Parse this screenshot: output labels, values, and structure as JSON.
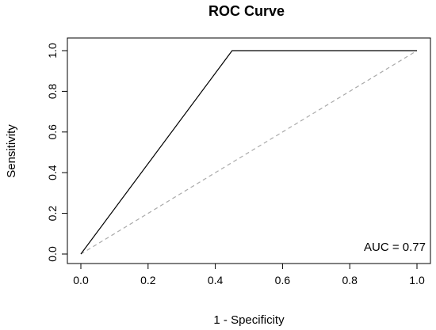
{
  "chart_data": {
    "type": "line",
    "title": "ROC Curve",
    "xlabel": "1 - Specificity",
    "ylabel": "Sensitivity",
    "xlim": [
      0,
      1
    ],
    "ylim": [
      0,
      1
    ],
    "x_ticks": [
      0.0,
      0.2,
      0.4,
      0.6,
      0.8,
      1.0
    ],
    "x_tick_labels": [
      "0.0",
      "0.2",
      "0.4",
      "0.6",
      "0.8",
      "1.0"
    ],
    "y_ticks": [
      0.0,
      0.2,
      0.4,
      0.6,
      0.8,
      1.0
    ],
    "y_tick_labels": [
      "0.0",
      "0.2",
      "0.4",
      "0.6",
      "0.8",
      "1.0"
    ],
    "grid": false,
    "series": [
      {
        "x": [
          0.0,
          0.45,
          1.0
        ],
        "y": [
          0.0,
          1.0,
          1.0
        ],
        "color": "#000000",
        "style": "solid"
      },
      {
        "x": [
          0.0,
          1.0
        ],
        "y": [
          0.0,
          1.0
        ],
        "color": "#aaaaaa",
        "style": "dashed"
      }
    ],
    "annotation": {
      "text": "AUC = 0.77",
      "position": "bottom-right"
    }
  }
}
